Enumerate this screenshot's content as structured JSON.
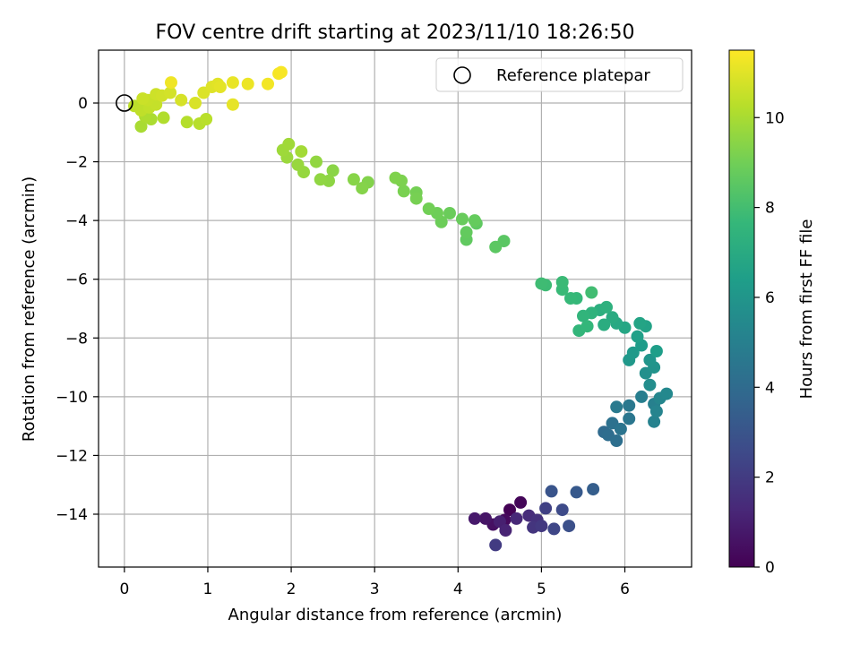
{
  "chart_data": {
    "type": "scatter",
    "title": "FOV centre drift starting at 2023/11/10 18:26:50",
    "xlabel": "Angular distance from reference (arcmin)",
    "ylabel": "Rotation from reference (arcmin)",
    "colorbar_label": "Hours from first FF file",
    "xlim": [
      -0.31,
      6.8
    ],
    "ylim": [
      -15.8,
      1.8
    ],
    "clim": [
      0,
      11.5
    ],
    "xticks": [
      0,
      1,
      2,
      3,
      4,
      5,
      6
    ],
    "yticks": [
      -14,
      -12,
      -10,
      -8,
      -6,
      -4,
      -2,
      0
    ],
    "cticks": [
      0,
      2,
      4,
      6,
      8,
      10
    ],
    "grid": true,
    "legend": {
      "placement": "top-right",
      "label": "Reference platepar"
    },
    "colormap": "viridis",
    "reference_point": {
      "x": 0,
      "y": 0
    },
    "points": [
      {
        "x": 4.62,
        "y": -13.85,
        "t": 0.05
      },
      {
        "x": 4.75,
        "y": -13.6,
        "t": 0.15
      },
      {
        "x": 4.56,
        "y": -14.2,
        "t": 0.3
      },
      {
        "x": 4.42,
        "y": -14.35,
        "t": 0.5
      },
      {
        "x": 4.33,
        "y": -14.15,
        "t": 0.65
      },
      {
        "x": 4.2,
        "y": -14.15,
        "t": 0.8
      },
      {
        "x": 4.5,
        "y": -14.25,
        "t": 1.0
      },
      {
        "x": 4.57,
        "y": -14.55,
        "t": 1.15
      },
      {
        "x": 4.7,
        "y": -14.15,
        "t": 1.3
      },
      {
        "x": 4.85,
        "y": -14.05,
        "t": 1.45
      },
      {
        "x": 4.95,
        "y": -14.2,
        "t": 1.6
      },
      {
        "x": 4.9,
        "y": -14.45,
        "t": 1.75
      },
      {
        "x": 5.0,
        "y": -14.4,
        "t": 1.9
      },
      {
        "x": 4.45,
        "y": -15.05,
        "t": 2.0
      },
      {
        "x": 5.05,
        "y": -13.8,
        "t": 2.2
      },
      {
        "x": 5.15,
        "y": -14.5,
        "t": 2.4
      },
      {
        "x": 5.25,
        "y": -13.85,
        "t": 2.6
      },
      {
        "x": 5.33,
        "y": -14.4,
        "t": 2.8
      },
      {
        "x": 5.12,
        "y": -13.22,
        "t": 3.0
      },
      {
        "x": 5.42,
        "y": -13.25,
        "t": 3.2
      },
      {
        "x": 5.62,
        "y": -13.15,
        "t": 3.4
      },
      {
        "x": 5.75,
        "y": -11.2,
        "t": 4.0
      },
      {
        "x": 5.8,
        "y": -11.3,
        "t": 4.1
      },
      {
        "x": 5.9,
        "y": -11.5,
        "t": 4.2
      },
      {
        "x": 5.85,
        "y": -10.9,
        "t": 4.3
      },
      {
        "x": 5.95,
        "y": -11.1,
        "t": 4.4
      },
      {
        "x": 6.05,
        "y": -10.75,
        "t": 4.5
      },
      {
        "x": 6.05,
        "y": -10.3,
        "t": 4.6
      },
      {
        "x": 5.9,
        "y": -10.35,
        "t": 4.7
      },
      {
        "x": 6.2,
        "y": -10.0,
        "t": 4.9
      },
      {
        "x": 6.35,
        "y": -10.25,
        "t": 5.0
      },
      {
        "x": 6.35,
        "y": -10.85,
        "t": 5.1
      },
      {
        "x": 6.38,
        "y": -10.5,
        "t": 5.2
      },
      {
        "x": 6.42,
        "y": -10.05,
        "t": 5.3
      },
      {
        "x": 6.5,
        "y": -9.9,
        "t": 5.4
      },
      {
        "x": 6.3,
        "y": -9.6,
        "t": 5.6
      },
      {
        "x": 6.25,
        "y": -9.2,
        "t": 5.75
      },
      {
        "x": 6.35,
        "y": -9.0,
        "t": 5.9
      },
      {
        "x": 6.3,
        "y": -8.75,
        "t": 6.0
      },
      {
        "x": 6.05,
        "y": -8.75,
        "t": 6.1
      },
      {
        "x": 6.1,
        "y": -8.5,
        "t": 6.2
      },
      {
        "x": 6.2,
        "y": -8.25,
        "t": 6.3
      },
      {
        "x": 6.38,
        "y": -8.45,
        "t": 6.4
      },
      {
        "x": 6.15,
        "y": -7.95,
        "t": 6.5
      },
      {
        "x": 6.25,
        "y": -7.6,
        "t": 6.6
      },
      {
        "x": 6.18,
        "y": -7.5,
        "t": 6.7
      },
      {
        "x": 6.0,
        "y": -7.65,
        "t": 6.8
      },
      {
        "x": 5.9,
        "y": -7.5,
        "t": 6.9
      },
      {
        "x": 5.85,
        "y": -7.3,
        "t": 7.0
      },
      {
        "x": 5.75,
        "y": -7.55,
        "t": 7.1
      },
      {
        "x": 5.7,
        "y": -7.05,
        "t": 7.2
      },
      {
        "x": 5.78,
        "y": -6.95,
        "t": 7.3
      },
      {
        "x": 5.6,
        "y": -7.15,
        "t": 7.4
      },
      {
        "x": 5.5,
        "y": -7.25,
        "t": 7.5
      },
      {
        "x": 5.45,
        "y": -7.75,
        "t": 7.55
      },
      {
        "x": 5.55,
        "y": -7.6,
        "t": 7.6
      },
      {
        "x": 5.42,
        "y": -6.65,
        "t": 7.65
      },
      {
        "x": 5.35,
        "y": -6.65,
        "t": 7.7
      },
      {
        "x": 5.25,
        "y": -6.35,
        "t": 7.75
      },
      {
        "x": 5.25,
        "y": -6.1,
        "t": 7.8
      },
      {
        "x": 5.05,
        "y": -6.2,
        "t": 7.85
      },
      {
        "x": 5.0,
        "y": -6.15,
        "t": 7.9
      },
      {
        "x": 5.6,
        "y": -6.45,
        "t": 7.95
      },
      {
        "x": 4.55,
        "y": -4.7,
        "t": 8.5
      },
      {
        "x": 4.45,
        "y": -4.9,
        "t": 8.55
      },
      {
        "x": 4.22,
        "y": -4.1,
        "t": 8.6
      },
      {
        "x": 4.1,
        "y": -4.65,
        "t": 8.65
      },
      {
        "x": 4.1,
        "y": -4.4,
        "t": 8.7
      },
      {
        "x": 4.2,
        "y": -4.0,
        "t": 8.75
      },
      {
        "x": 4.05,
        "y": -3.95,
        "t": 8.8
      },
      {
        "x": 3.9,
        "y": -3.75,
        "t": 8.85
      },
      {
        "x": 3.8,
        "y": -4.05,
        "t": 8.9
      },
      {
        "x": 3.75,
        "y": -3.75,
        "t": 8.95
      },
      {
        "x": 3.65,
        "y": -3.6,
        "t": 9.0
      },
      {
        "x": 3.5,
        "y": -3.05,
        "t": 9.05
      },
      {
        "x": 3.5,
        "y": -3.25,
        "t": 9.1
      },
      {
        "x": 3.35,
        "y": -3.0,
        "t": 9.15
      },
      {
        "x": 3.32,
        "y": -2.65,
        "t": 9.2
      },
      {
        "x": 3.25,
        "y": -2.55,
        "t": 9.25
      },
      {
        "x": 2.92,
        "y": -2.7,
        "t": 9.3
      },
      {
        "x": 2.85,
        "y": -2.9,
        "t": 9.35
      },
      {
        "x": 2.75,
        "y": -2.6,
        "t": 9.4
      },
      {
        "x": 2.5,
        "y": -2.3,
        "t": 9.45
      },
      {
        "x": 2.45,
        "y": -2.65,
        "t": 9.5
      },
      {
        "x": 2.35,
        "y": -2.6,
        "t": 9.55
      },
      {
        "x": 2.3,
        "y": -2.0,
        "t": 9.6
      },
      {
        "x": 2.15,
        "y": -2.35,
        "t": 9.65
      },
      {
        "x": 2.08,
        "y": -2.1,
        "t": 9.7
      },
      {
        "x": 1.95,
        "y": -1.85,
        "t": 9.75
      },
      {
        "x": 1.9,
        "y": -1.6,
        "t": 9.8
      },
      {
        "x": 1.97,
        "y": -1.4,
        "t": 9.85
      },
      {
        "x": 2.12,
        "y": -1.65,
        "t": 9.9
      },
      {
        "x": 0.2,
        "y": -0.8,
        "t": 10.0
      },
      {
        "x": 0.32,
        "y": -0.55,
        "t": 10.05
      },
      {
        "x": 0.25,
        "y": -0.45,
        "t": 10.1
      },
      {
        "x": 0.47,
        "y": -0.5,
        "t": 10.15
      },
      {
        "x": 0.75,
        "y": -0.65,
        "t": 10.2
      },
      {
        "x": 0.9,
        "y": -0.7,
        "t": 10.25
      },
      {
        "x": 0.98,
        "y": -0.55,
        "t": 10.3
      },
      {
        "x": 0.12,
        "y": -0.1,
        "t": 10.35
      },
      {
        "x": 0.2,
        "y": -0.25,
        "t": 10.4
      },
      {
        "x": 0.3,
        "y": -0.15,
        "t": 10.45
      },
      {
        "x": 0.38,
        "y": -0.05,
        "t": 10.5
      },
      {
        "x": 0.28,
        "y": 0.1,
        "t": 10.55
      },
      {
        "x": 0.22,
        "y": 0.15,
        "t": 10.6
      },
      {
        "x": 0.38,
        "y": 0.3,
        "t": 10.65
      },
      {
        "x": 0.45,
        "y": 0.25,
        "t": 10.7
      },
      {
        "x": 0.55,
        "y": 0.35,
        "t": 10.75
      },
      {
        "x": 0.68,
        "y": 0.1,
        "t": 10.8
      },
      {
        "x": 0.85,
        "y": 0.0,
        "t": 10.85
      },
      {
        "x": 0.95,
        "y": 0.35,
        "t": 10.9
      },
      {
        "x": 1.05,
        "y": 0.55,
        "t": 10.95
      },
      {
        "x": 1.12,
        "y": 0.65,
        "t": 11.0
      },
      {
        "x": 1.15,
        "y": 0.55,
        "t": 11.05
      },
      {
        "x": 1.3,
        "y": -0.05,
        "t": 11.1
      },
      {
        "x": 1.3,
        "y": 0.7,
        "t": 11.15
      },
      {
        "x": 1.48,
        "y": 0.65,
        "t": 11.2
      },
      {
        "x": 0.56,
        "y": 0.7,
        "t": 11.25
      },
      {
        "x": 1.72,
        "y": 0.65,
        "t": 11.3
      },
      {
        "x": 1.85,
        "y": 1.0,
        "t": 11.35
      },
      {
        "x": 1.88,
        "y": 1.05,
        "t": 11.4
      }
    ]
  }
}
